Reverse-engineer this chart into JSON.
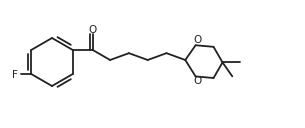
{
  "bg_color": "#ffffff",
  "line_color": "#222222",
  "line_width": 1.3,
  "text_color": "#222222",
  "figsize": [
    3.05,
    1.28
  ],
  "dpi": 100,
  "xlim": [
    0,
    305
  ],
  "ylim": [
    0,
    128
  ]
}
